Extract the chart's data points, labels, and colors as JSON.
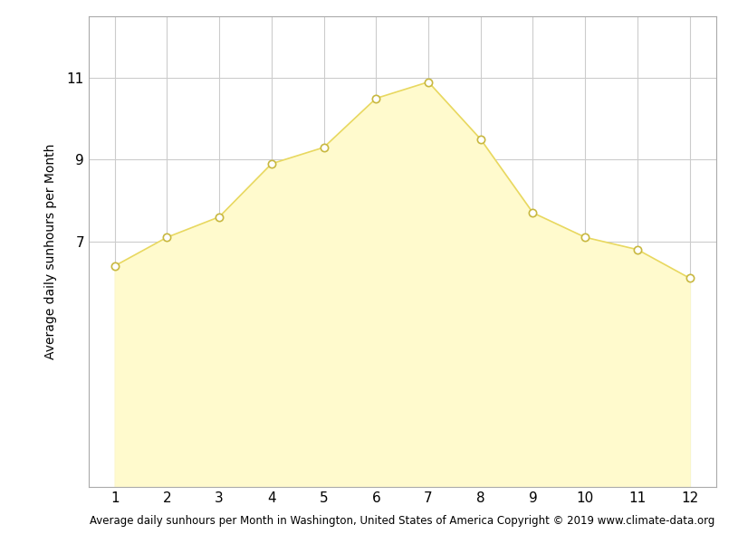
{
  "x": [
    1,
    2,
    3,
    4,
    5,
    6,
    7,
    8,
    9,
    10,
    11,
    12
  ],
  "y": [
    6.4,
    7.1,
    7.6,
    8.9,
    9.3,
    10.5,
    10.9,
    9.5,
    7.7,
    7.1,
    6.8,
    6.1
  ],
  "fill_color": "#FFFACD",
  "line_color": "#E8D860",
  "marker_color": "white",
  "marker_edge_color": "#C8B840",
  "ylabel": "Average daily sunhours per Month",
  "xlabel": "Average daily sunhours per Month in Washington, United States of America Copyright © 2019 www.climate-data.org",
  "yticks": [
    7,
    9,
    11
  ],
  "xticks": [
    1,
    2,
    3,
    4,
    5,
    6,
    7,
    8,
    9,
    10,
    11,
    12
  ],
  "ylim_bottom": 1,
  "ylim_top": 12.5,
  "xlim_left": 0.5,
  "xlim_right": 12.5,
  "fill_baseline": 1,
  "background_color": "#ffffff",
  "grid_color": "#cccccc",
  "axis_fontsize": 10,
  "xlabel_fontsize": 8.5,
  "tick_fontsize": 11,
  "marker_size": 6,
  "line_width": 1.2
}
